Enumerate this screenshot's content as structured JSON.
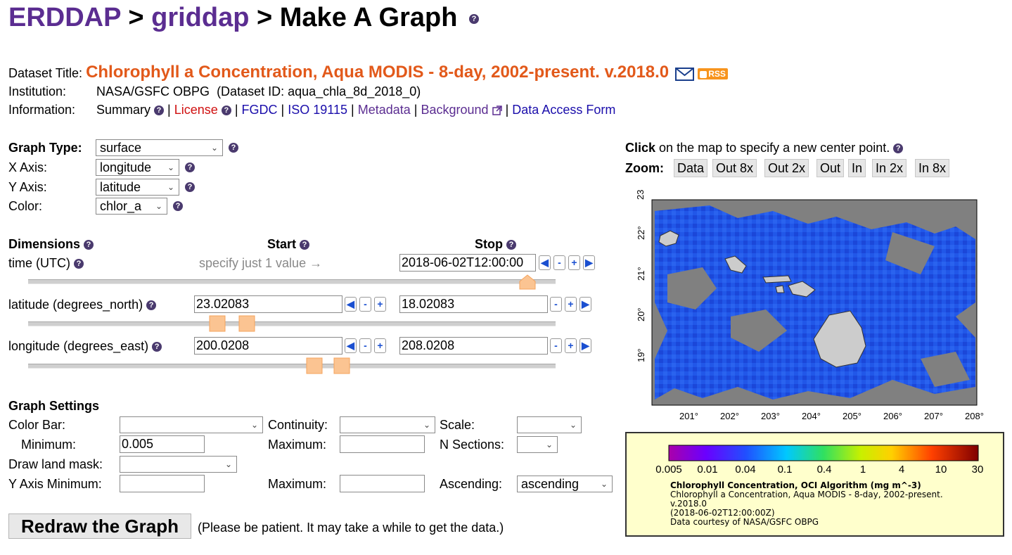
{
  "header": {
    "erddap": "ERDDAP",
    "sep1": ">",
    "griddap": "griddap",
    "sep2": ">",
    "title": "Make A Graph"
  },
  "dataset": {
    "title_label": "Dataset Title:",
    "title": "Chlorophyll a Concentration, Aqua MODIS - 8-day, 2002-present. v.2018.0",
    "rss": "RSS",
    "institution_label": "Institution:",
    "institution": "NASA/GSFC OBPG",
    "dataset_id": "(Dataset ID: aqua_chla_8d_2018_0)",
    "information_label": "Information:",
    "links": {
      "summary": "Summary",
      "license": "License",
      "fgdc": "FGDC",
      "iso": "ISO 19115",
      "metadata": "Metadata",
      "background": "Background",
      "daf": "Data Access Form"
    },
    "pipe": "|"
  },
  "graph": {
    "type_label": "Graph Type:",
    "type": "surface",
    "x_label": "X Axis:",
    "x": "longitude",
    "y_label": "Y Axis:",
    "y": "latitude",
    "color_label": "Color:",
    "color": "chlor_a"
  },
  "dimensions": {
    "header": "Dimensions",
    "start": "Start",
    "stop": "Stop",
    "time_label": "time (UTC)",
    "time_hint": "specify just 1 value →",
    "time_stop": "2018-06-02T12:00:00",
    "lat_label": "latitude (degrees_north)",
    "lat_start": "23.02083",
    "lat_stop": "18.02083",
    "lon_label": "longitude (degrees_east)",
    "lon_start": "200.0208",
    "lon_stop": "208.0208",
    "minus": "-",
    "plus": "+",
    "left": "◀",
    "right": "▶"
  },
  "settings": {
    "header": "Graph Settings",
    "color_bar": "Color Bar:",
    "continuity": "Continuity:",
    "scale": "Scale:",
    "minimum": "Minimum:",
    "minimum_value": "0.005",
    "maximum": "Maximum:",
    "n_sections": "N Sections:",
    "draw_land_mask": "Draw land mask:",
    "y_axis_minimum": "Y Axis Minimum:",
    "y_maximum": "Maximum:",
    "ascending_label": "Ascending:",
    "ascending": "ascending"
  },
  "redraw": {
    "button": "Redraw the Graph",
    "note": "(Please be patient. It may take a while to get the data.)"
  },
  "map": {
    "click_bold": "Click",
    "click_rest": "on the map to specify a new center point.",
    "zoom_label": "Zoom:",
    "zoom_buttons": [
      "Data",
      "Out 8x",
      "Out 2x",
      "Out",
      "In",
      "In 2x",
      "In 8x"
    ],
    "y_ticks": [
      "23°",
      "22°",
      "21°",
      "20°",
      "19°"
    ],
    "x_ticks": [
      "201°",
      "202°",
      "203°",
      "204°",
      "205°",
      "206°",
      "207°",
      "208°"
    ],
    "colors": {
      "land": "#cccccc",
      "nodata": "#808080",
      "ocean": "#1f52e6"
    }
  },
  "legend": {
    "ticks": [
      "0.005",
      "0.01",
      "0.04",
      "0.1",
      "0.4",
      "1",
      "4",
      "10",
      "30"
    ],
    "title": "Chlorophyll Concentration, OCI Algorithm (mg m^-3)",
    "line1": "Chlorophyll a Concentration, Aqua MODIS - 8-day, 2002-present.",
    "line2": "v.2018.0",
    "line3": "(2018-06-02T12:00:00Z)",
    "line4": "Data courtesy of NASA/GSFC OBPG"
  }
}
